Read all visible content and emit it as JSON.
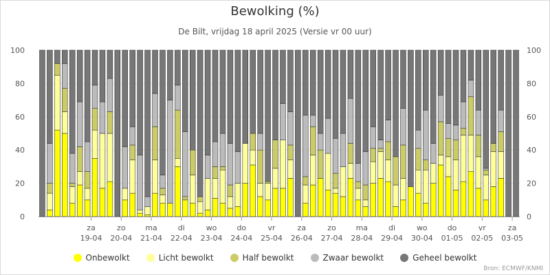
{
  "chart_data": {
    "type": "bar",
    "stacked": true,
    "title": "Bewolking (%)",
    "subtitle": "De Bilt, vrijdag 18 april 2025 (Versie vr 00 uur)",
    "source": "Bron: ECMWF/KNMI",
    "ylim": [
      0,
      100
    ],
    "yticks": [
      0,
      20,
      40,
      60,
      80,
      100
    ],
    "day_labels": [
      {
        "day": "za",
        "date": "19-04",
        "bar_index": 7
      },
      {
        "day": "zo",
        "date": "20-04",
        "bar_index": 11
      },
      {
        "day": "ma",
        "date": "21-04",
        "bar_index": 15
      },
      {
        "day": "di",
        "date": "22-04",
        "bar_index": 19
      },
      {
        "day": "wo",
        "date": "23-04",
        "bar_index": 23
      },
      {
        "day": "do",
        "date": "24-04",
        "bar_index": 27
      },
      {
        "day": "vr",
        "date": "25-04",
        "bar_index": 31
      },
      {
        "day": "za",
        "date": "26-04",
        "bar_index": 35
      },
      {
        "day": "zo",
        "date": "27-04",
        "bar_index": 39
      },
      {
        "day": "ma",
        "date": "28-04",
        "bar_index": 43
      },
      {
        "day": "di",
        "date": "29-04",
        "bar_index": 47
      },
      {
        "day": "wo",
        "date": "30-04",
        "bar_index": 51
      },
      {
        "day": "do",
        "date": "01-05",
        "bar_index": 55
      },
      {
        "day": "vr",
        "date": "02-05",
        "bar_index": 59
      },
      {
        "day": "za",
        "date": "03-05",
        "bar_index": 63
      }
    ],
    "series": [
      {
        "name": "Onbewolkt",
        "color": "#ffff00",
        "values": [
          0,
          4,
          52,
          50,
          8,
          19,
          10,
          35,
          17,
          21,
          0,
          10,
          14,
          2,
          1,
          14,
          8,
          8,
          30,
          10,
          8,
          2,
          4,
          11,
          8,
          5,
          6,
          20,
          31,
          12,
          10,
          17,
          17,
          23,
          0,
          8,
          19,
          23,
          16,
          14,
          12,
          23,
          10,
          6,
          20,
          23,
          21,
          6,
          10,
          18,
          14,
          8,
          20,
          31,
          24,
          16,
          21,
          27,
          17,
          10,
          18,
          23,
          0,
          0
        ]
      },
      {
        "name": "Licht bewolkt",
        "color": "#ffff99",
        "values": [
          0,
          10,
          33,
          13,
          10,
          8,
          7,
          17,
          33,
          29,
          0,
          7,
          20,
          2,
          5,
          20,
          5,
          0,
          5,
          0,
          17,
          7,
          19,
          12,
          20,
          7,
          14,
          24,
          9,
          8,
          10,
          12,
          29,
          11,
          0,
          11,
          18,
          0,
          22,
          3,
          18,
          9,
          7,
          4,
          13,
          16,
          13,
          13,
          13,
          0,
          14,
          20,
          12,
          6,
          12,
          18,
          28,
          22,
          19,
          15,
          21,
          16,
          0,
          0
        ]
      },
      {
        "name": "Half bewolkt",
        "color": "#cccc66",
        "values": [
          0,
          6,
          7,
          14,
          2,
          15,
          10,
          13,
          0,
          13,
          0,
          0,
          9,
          0,
          0,
          20,
          4,
          0,
          29,
          2,
          15,
          3,
          0,
          7,
          2,
          7,
          0,
          0,
          10,
          20,
          1,
          17,
          0,
          9,
          0,
          5,
          17,
          17,
          0,
          9,
          0,
          12,
          4,
          9,
          8,
          2,
          11,
          17,
          20,
          0,
          13,
          6,
          0,
          20,
          11,
          12,
          4,
          23,
          13,
          3,
          5,
          12,
          0,
          0
        ]
      },
      {
        "name": "Zwaar bewolkt",
        "color": "#bbbbbb",
        "values": [
          0,
          24,
          0,
          15,
          18,
          27,
          18,
          14,
          19,
          20,
          0,
          25,
          11,
          33,
          6,
          20,
          8,
          62,
          15,
          39,
          0,
          0,
          14,
          15,
          20,
          25,
          19,
          0,
          0,
          10,
          0,
          0,
          22,
          20,
          0,
          37,
          7,
          10,
          21,
          21,
          20,
          27,
          11,
          20,
          13,
          5,
          13,
          0,
          22,
          0,
          11,
          30,
          12,
          16,
          9,
          9,
          16,
          10,
          15,
          1,
          0,
          13,
          0,
          0
        ]
      },
      {
        "name": "Geheel bewolkt",
        "color": "#777777",
        "values": [
          100,
          56,
          8,
          8,
          62,
          31,
          55,
          21,
          31,
          17,
          100,
          58,
          46,
          63,
          88,
          26,
          75,
          30,
          21,
          49,
          60,
          88,
          63,
          55,
          50,
          56,
          61,
          56,
          50,
          50,
          79,
          54,
          32,
          37,
          100,
          39,
          39,
          50,
          41,
          53,
          50,
          29,
          68,
          61,
          46,
          54,
          42,
          64,
          35,
          82,
          48,
          36,
          56,
          27,
          44,
          45,
          31,
          18,
          36,
          71,
          56,
          36,
          100,
          100
        ]
      }
    ]
  }
}
